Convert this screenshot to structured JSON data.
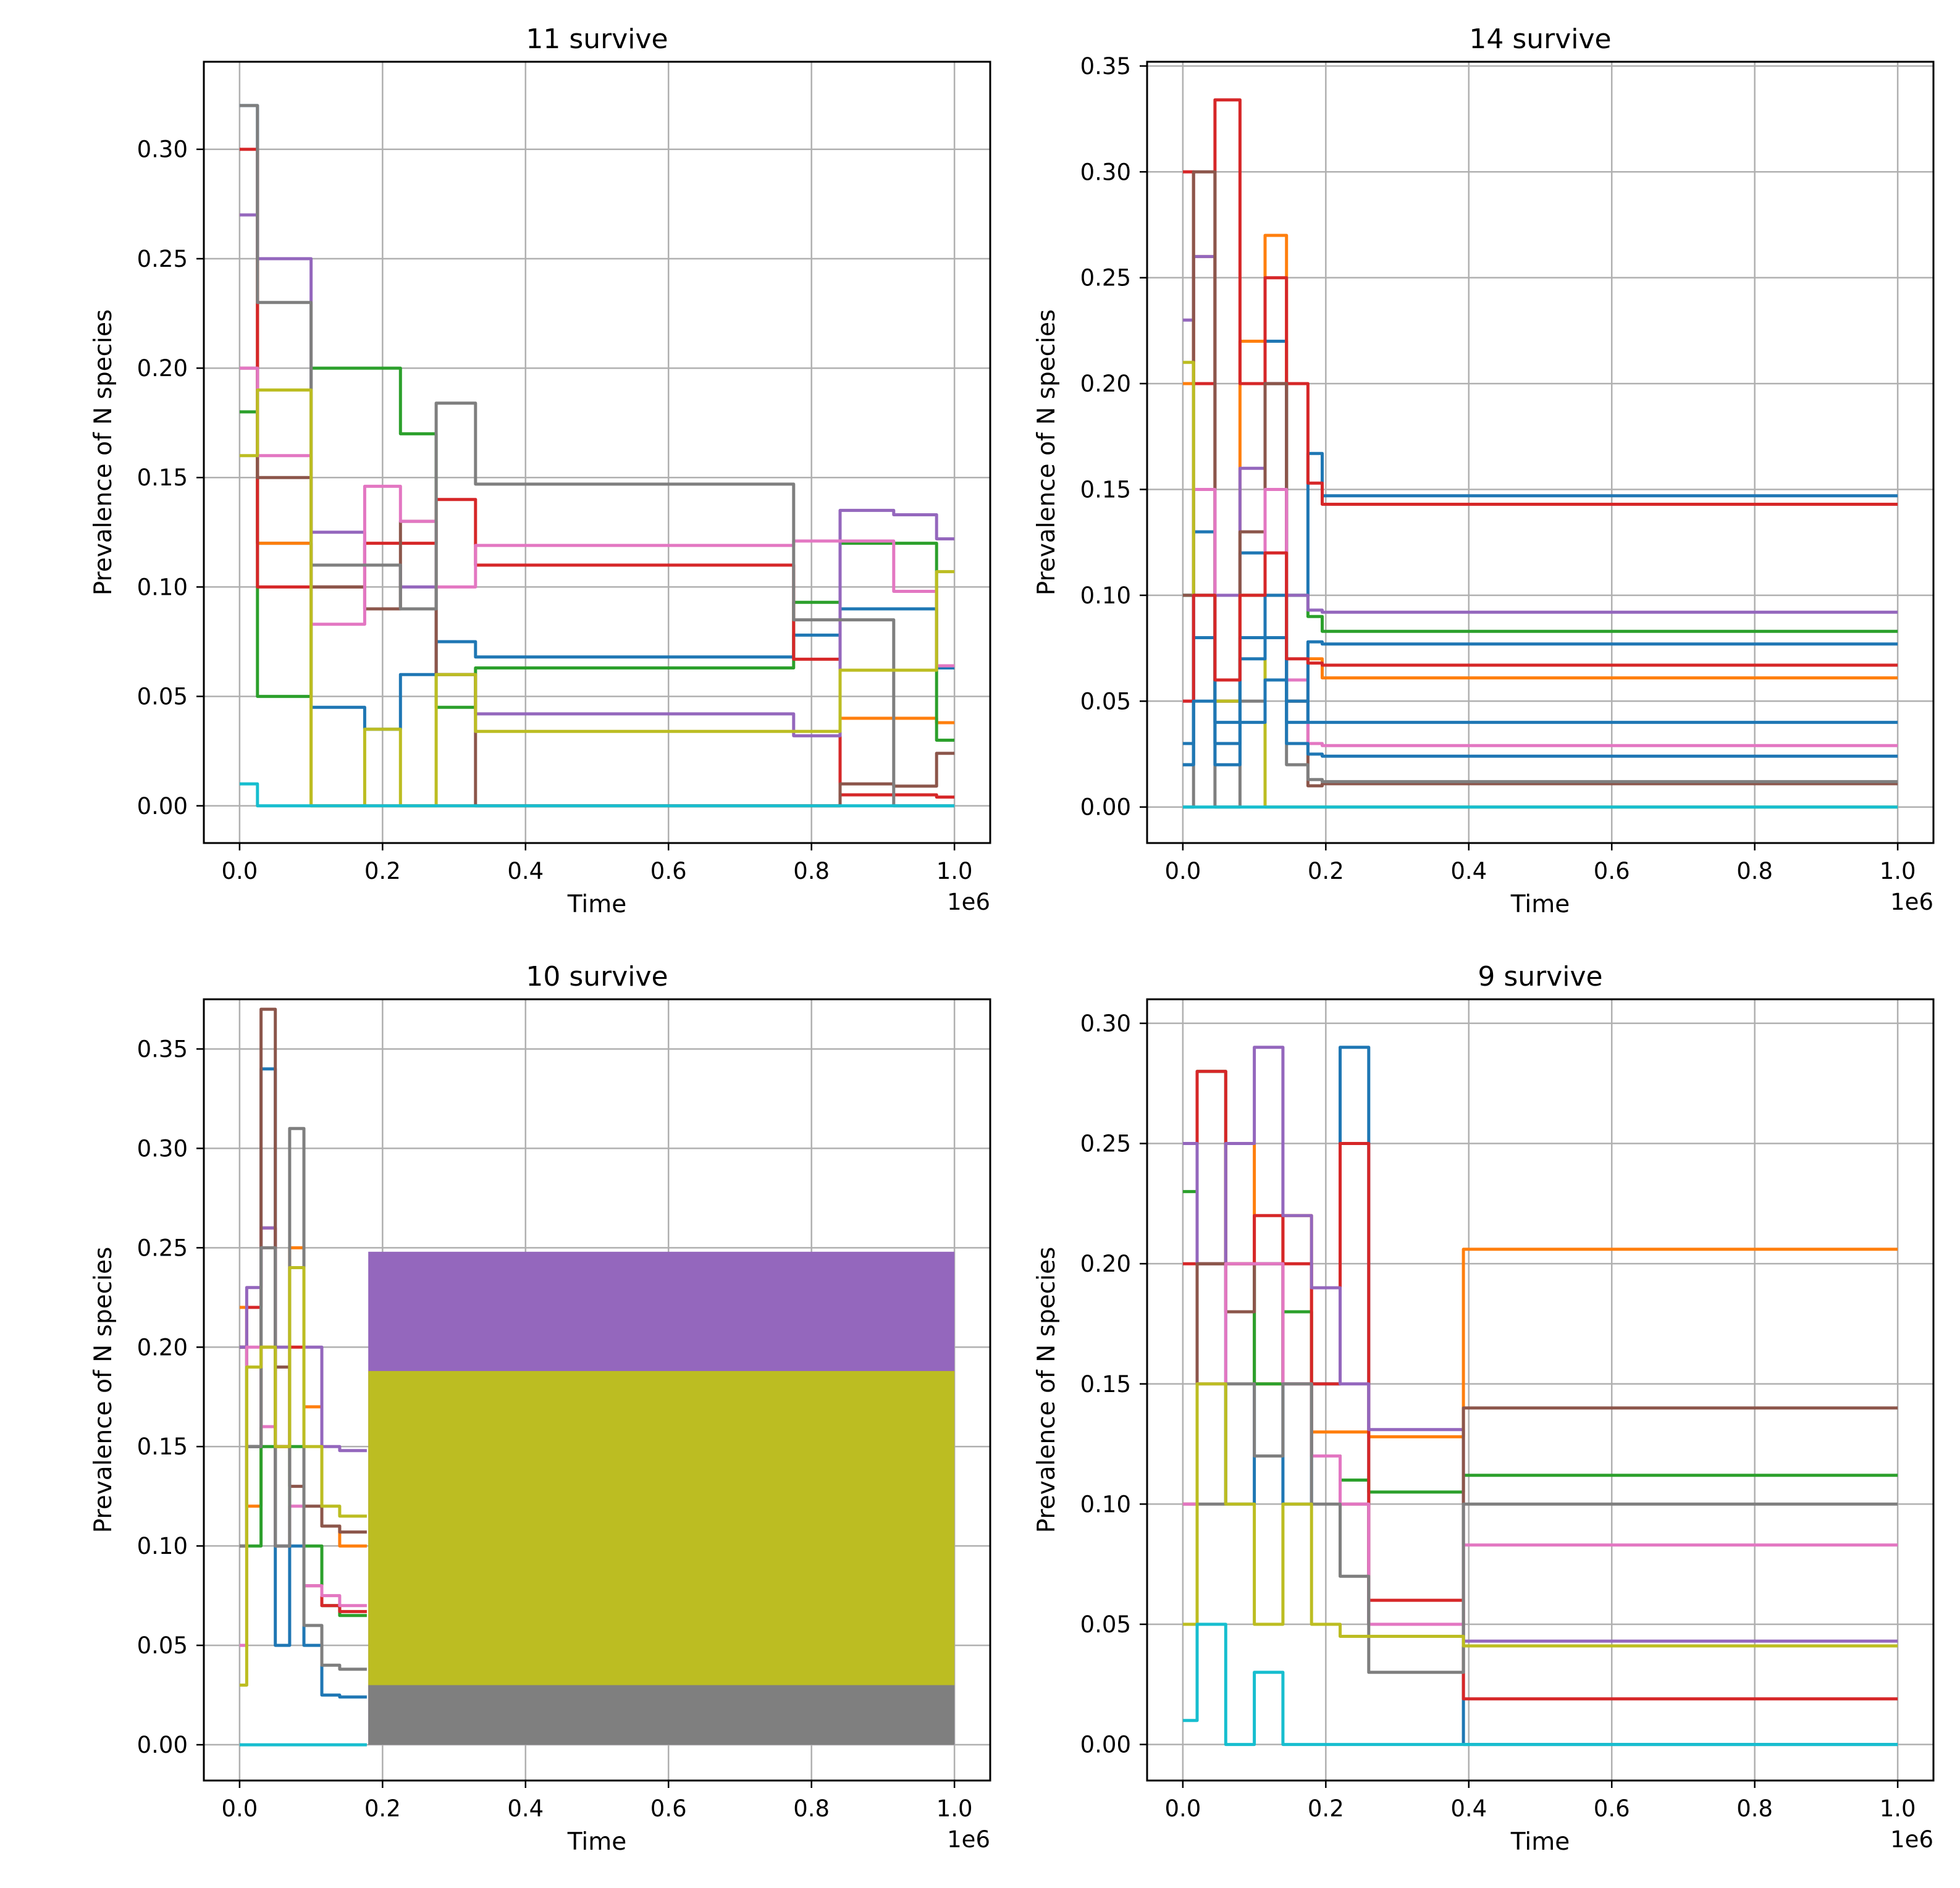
{
  "chart_data": [
    {
      "type": "line",
      "title": "11 survive",
      "xlabel": "Time",
      "ylabel": "Prevalence of N species",
      "x_offset_label": "1e6",
      "xlim": [
        -0.05,
        1.05
      ],
      "ylim": [
        -0.017,
        0.34
      ],
      "xticks": [
        "0.0",
        "0.2",
        "0.4",
        "0.6",
        "0.8",
        "1.0"
      ],
      "yticks": [
        "0.00",
        "0.05",
        "0.10",
        "0.15",
        "0.20",
        "0.25",
        "0.30"
      ],
      "grid": true,
      "x": [
        0.0,
        0.05,
        0.15,
        0.2,
        0.25,
        0.3,
        0.36,
        0.5,
        0.75,
        0.8,
        0.88,
        0.95,
        1.0
      ],
      "series": [
        {
          "color": "#1f77b4",
          "values": [
            0.32,
            0.12,
            0.045,
            0.035,
            0.06,
            0.075,
            0.068,
            0.068,
            0.068,
            0.078,
            0.09,
            0.09,
            0.063
          ]
        },
        {
          "color": "#ff7f0e",
          "values": [
            0.27,
            0.12,
            0.0,
            0.0,
            0.0,
            0.0,
            0.0,
            0.0,
            0.0,
            0.0,
            0.04,
            0.04,
            0.038
          ]
        },
        {
          "color": "#2ca02c",
          "values": [
            0.18,
            0.05,
            0.2,
            0.2,
            0.17,
            0.045,
            0.063,
            0.063,
            0.063,
            0.093,
            0.12,
            0.12,
            0.03
          ]
        },
        {
          "color": "#d62728",
          "values": [
            0.3,
            0.1,
            0.1,
            0.12,
            0.12,
            0.14,
            0.11,
            0.11,
            0.11,
            0.067,
            0.005,
            0.005,
            0.004
          ]
        },
        {
          "color": "#9467bd",
          "values": [
            0.27,
            0.25,
            0.125,
            0.11,
            0.1,
            0.06,
            0.042,
            0.042,
            0.042,
            0.032,
            0.135,
            0.133,
            0.122
          ]
        },
        {
          "color": "#8c564b",
          "values": [
            0.2,
            0.15,
            0.1,
            0.09,
            0.13,
            0.06,
            0.0,
            0.0,
            0.0,
            0.0,
            0.01,
            0.009,
            0.024
          ]
        },
        {
          "color": "#e377c2",
          "values": [
            0.2,
            0.16,
            0.083,
            0.146,
            0.13,
            0.1,
            0.119,
            0.119,
            0.119,
            0.121,
            0.121,
            0.098,
            0.064
          ]
        },
        {
          "color": "#7f7f7f",
          "values": [
            0.32,
            0.23,
            0.11,
            0.11,
            0.09,
            0.184,
            0.147,
            0.147,
            0.147,
            0.085,
            0.085,
            0.0,
            0.0
          ]
        },
        {
          "color": "#bcbd22",
          "values": [
            0.16,
            0.19,
            0.0,
            0.035,
            0.0,
            0.06,
            0.034,
            0.034,
            0.034,
            0.034,
            0.062,
            0.062,
            0.107
          ]
        },
        {
          "color": "#17becf",
          "values": [
            0.01,
            0.0,
            0.0,
            0.0,
            0.0,
            0.0,
            0.0,
            0.0,
            0.0,
            0.0,
            0.0,
            0.0,
            0.0
          ]
        }
      ]
    },
    {
      "type": "line",
      "title": "14 survive",
      "xlabel": "Time",
      "ylabel": "Prevalence of N species",
      "x_offset_label": "1e6",
      "xlim": [
        -0.05,
        1.05
      ],
      "ylim": [
        -0.017,
        0.352
      ],
      "xticks": [
        "0.0",
        "0.2",
        "0.4",
        "0.6",
        "0.8",
        "1.0"
      ],
      "yticks": [
        "0.00",
        "0.05",
        "0.10",
        "0.15",
        "0.20",
        "0.25",
        "0.30",
        "0.35"
      ],
      "grid": true,
      "x": [
        0.0,
        0.03,
        0.06,
        0.1,
        0.13,
        0.16,
        0.19,
        0.2,
        1.0
      ],
      "series": [
        {
          "color": "#1f77b4",
          "values": [
            0.1,
            0.13,
            0.05,
            0.12,
            0.22,
            0.1,
            0.167,
            0.147,
            0.147
          ]
        },
        {
          "color": "#ff7f0e",
          "values": [
            0.2,
            0.26,
            0.05,
            0.22,
            0.27,
            0.05,
            0.07,
            0.061,
            0.061
          ]
        },
        {
          "color": "#2ca02c",
          "values": [
            0.1,
            0.15,
            0.05,
            0.1,
            0.2,
            0.1,
            0.09,
            0.083,
            0.083
          ]
        },
        {
          "color": "#d62728",
          "values": [
            0.3,
            0.2,
            0.334,
            0.2,
            0.25,
            0.2,
            0.153,
            0.143,
            0.143
          ]
        },
        {
          "color": "#9467bd",
          "values": [
            0.23,
            0.26,
            0.1,
            0.16,
            0.2,
            0.1,
            0.093,
            0.092,
            0.092
          ]
        },
        {
          "color": "#8c564b",
          "values": [
            0.1,
            0.3,
            0.05,
            0.13,
            0.2,
            0.05,
            0.01,
            0.011,
            0.011
          ]
        },
        {
          "color": "#e377c2",
          "values": [
            0.05,
            0.15,
            0.05,
            0.1,
            0.15,
            0.06,
            0.03,
            0.029,
            0.029
          ]
        },
        {
          "color": "#7f7f7f",
          "values": [
            0.0,
            0.1,
            0.0,
            0.05,
            0.1,
            0.02,
            0.013,
            0.012,
            0.012
          ]
        },
        {
          "color": "#bcbd22",
          "values": [
            0.21,
            0.1,
            0.05,
            0.1,
            0.0,
            0.0,
            0.0,
            0.0,
            0.0
          ]
        },
        {
          "color": "#17becf",
          "values": [
            0.0,
            0.0,
            0.0,
            0.0,
            0.0,
            0.0,
            0.0,
            0.0,
            0.0
          ]
        },
        {
          "color": "#1f77b4",
          "values": [
            0.03,
            0.1,
            0.04,
            0.08,
            0.1,
            0.05,
            0.04,
            0.04,
            0.04
          ]
        },
        {
          "color": "#1f77b4",
          "values": [
            0.02,
            0.08,
            0.03,
            0.07,
            0.08,
            0.04,
            0.078,
            0.077,
            0.077
          ]
        },
        {
          "color": "#d62728",
          "values": [
            0.05,
            0.1,
            0.06,
            0.1,
            0.12,
            0.07,
            0.068,
            0.067,
            0.067
          ]
        },
        {
          "color": "#1f77b4",
          "values": [
            0.02,
            0.05,
            0.02,
            0.04,
            0.06,
            0.03,
            0.025,
            0.024,
            0.024
          ]
        }
      ]
    },
    {
      "type": "line",
      "title": "10 survive",
      "xlabel": "Time",
      "ylabel": "Prevalence of N species",
      "x_offset_label": "1e6",
      "xlim": [
        -0.05,
        1.05
      ],
      "ylim": [
        -0.018,
        0.375
      ],
      "xticks": [
        "0.0",
        "0.2",
        "0.4",
        "0.6",
        "0.8",
        "1.0"
      ],
      "yticks": [
        "0.00",
        "0.05",
        "0.10",
        "0.15",
        "0.20",
        "0.25",
        "0.30",
        "0.35"
      ],
      "grid": true,
      "x": [
        0.0,
        0.02,
        0.04,
        0.06,
        0.08,
        0.1,
        0.13,
        0.15,
        0.178
      ],
      "series": [
        {
          "color": "#1f77b4",
          "values": [
            0.2,
            0.15,
            0.34,
            0.05,
            0.1,
            0.05,
            0.025,
            0.024,
            0.024
          ]
        },
        {
          "color": "#ff7f0e",
          "values": [
            0.22,
            0.12,
            0.2,
            0.15,
            0.25,
            0.17,
            0.11,
            0.1,
            0.1
          ]
        },
        {
          "color": "#2ca02c",
          "values": [
            0.2,
            0.1,
            0.15,
            0.1,
            0.15,
            0.1,
            0.07,
            0.065,
            0.065
          ]
        },
        {
          "color": "#d62728",
          "values": [
            0.2,
            0.22,
            0.26,
            0.15,
            0.2,
            0.08,
            0.07,
            0.067,
            0.067
          ]
        },
        {
          "color": "#9467bd",
          "values": [
            0.2,
            0.23,
            0.26,
            0.2,
            0.24,
            0.2,
            0.15,
            0.148,
            0.148
          ]
        },
        {
          "color": "#8c564b",
          "values": [
            0.1,
            0.15,
            0.37,
            0.19,
            0.13,
            0.12,
            0.11,
            0.107,
            0.107
          ]
        },
        {
          "color": "#e377c2",
          "values": [
            0.05,
            0.2,
            0.16,
            0.1,
            0.12,
            0.08,
            0.075,
            0.07,
            0.07
          ]
        },
        {
          "color": "#7f7f7f",
          "values": [
            0.1,
            0.15,
            0.25,
            0.1,
            0.31,
            0.06,
            0.04,
            0.038,
            0.038
          ]
        },
        {
          "color": "#bcbd22",
          "values": [
            0.03,
            0.19,
            0.2,
            0.15,
            0.24,
            0.15,
            0.12,
            0.115,
            0.115
          ]
        },
        {
          "color": "#17becf",
          "values": [
            0.0,
            0.0,
            0.0,
            0.0,
            0.0,
            0.0,
            0.0,
            0.0,
            0.0
          ]
        }
      ],
      "bands": [
        {
          "color": "#9467bd",
          "x_start": 0.18,
          "x_end": 1.0,
          "y_low": 0.0,
          "y_high": 0.248
        },
        {
          "color": "#7f7f7f",
          "x_start": 0.18,
          "x_end": 1.0,
          "y_low": 0.0,
          "y_high": 0.03
        },
        {
          "color": "#bcbd22",
          "x_start": 0.18,
          "x_end": 1.0,
          "y_low": 0.03,
          "y_high": 0.188
        }
      ]
    },
    {
      "type": "line",
      "title": "9 survive",
      "xlabel": "Time",
      "ylabel": "Prevalence of N species",
      "x_offset_label": "1e6",
      "xlim": [
        -0.05,
        1.05
      ],
      "ylim": [
        -0.015,
        0.31
      ],
      "xticks": [
        "0.0",
        "0.2",
        "0.4",
        "0.6",
        "0.8",
        "1.0"
      ],
      "yticks": [
        "0.00",
        "0.05",
        "0.10",
        "0.15",
        "0.20",
        "0.25",
        "0.30"
      ],
      "grid": true,
      "x": [
        0.0,
        0.04,
        0.08,
        0.12,
        0.16,
        0.2,
        0.24,
        0.28,
        0.385,
        0.4,
        1.0
      ],
      "series": [
        {
          "color": "#1f77b4",
          "values": [
            0.05,
            0.2,
            0.1,
            0.2,
            0.1,
            0.15,
            0.29,
            0.05,
            0.05,
            0.0,
            0.0
          ]
        },
        {
          "color": "#ff7f0e",
          "values": [
            0.1,
            0.2,
            0.25,
            0.15,
            0.22,
            0.13,
            0.13,
            0.128,
            0.128,
            0.206,
            0.206
          ]
        },
        {
          "color": "#2ca02c",
          "values": [
            0.23,
            0.28,
            0.2,
            0.15,
            0.18,
            0.12,
            0.11,
            0.105,
            0.105,
            0.112,
            0.112
          ]
        },
        {
          "color": "#d62728",
          "values": [
            0.2,
            0.28,
            0.2,
            0.22,
            0.2,
            0.15,
            0.25,
            0.06,
            0.06,
            0.019,
            0.019
          ]
        },
        {
          "color": "#9467bd",
          "values": [
            0.25,
            0.2,
            0.25,
            0.29,
            0.22,
            0.19,
            0.15,
            0.131,
            0.131,
            0.043,
            0.043
          ]
        },
        {
          "color": "#8c564b",
          "values": [
            0.1,
            0.2,
            0.18,
            0.2,
            0.15,
            0.12,
            0.1,
            0.05,
            0.05,
            0.14,
            0.14
          ]
        },
        {
          "color": "#e377c2",
          "values": [
            0.1,
            0.15,
            0.2,
            0.2,
            0.15,
            0.12,
            0.1,
            0.05,
            0.05,
            0.083,
            0.083
          ]
        },
        {
          "color": "#7f7f7f",
          "values": [
            0.05,
            0.1,
            0.15,
            0.12,
            0.15,
            0.1,
            0.07,
            0.03,
            0.03,
            0.1,
            0.1
          ]
        },
        {
          "color": "#bcbd22",
          "values": [
            0.05,
            0.15,
            0.1,
            0.05,
            0.1,
            0.05,
            0.045,
            0.045,
            0.045,
            0.041,
            0.041
          ]
        },
        {
          "color": "#17becf",
          "values": [
            0.01,
            0.05,
            0.0,
            0.03,
            0.0,
            0.0,
            0.0,
            0.0,
            0.0,
            0.0,
            0.0
          ]
        }
      ]
    }
  ]
}
